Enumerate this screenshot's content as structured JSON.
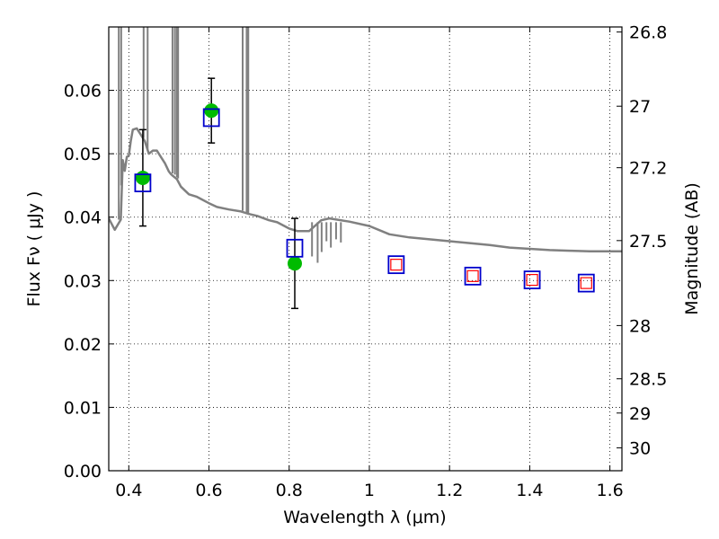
{
  "chart_data": {
    "type": "scatter",
    "xlabel": "Wavelength  λ (μm)",
    "ylabel": "Flux  Fν  ( μJy )",
    "ylabel2": "Magnitude (AB)",
    "xlim": [
      0.35,
      1.63
    ],
    "ylim": [
      0.0,
      0.07
    ],
    "grid": true,
    "x_ticks": [
      0.4,
      0.6,
      0.8,
      1.0,
      1.2,
      1.4,
      1.6
    ],
    "x_tick_labels": [
      "0.4",
      "0.6",
      "0.8",
      "1",
      "1.2",
      "1.4",
      "1.6"
    ],
    "y_ticks": [
      0.0,
      0.01,
      0.02,
      0.03,
      0.04,
      0.05,
      0.06
    ],
    "y_tick_labels": [
      "0.00",
      "0.01",
      "0.02",
      "0.03",
      "0.04",
      "0.05",
      "0.06"
    ],
    "mag_ticks": [
      {
        "label": "26.8",
        "flux": 0.0692
      },
      {
        "label": "27",
        "flux": 0.0575
      },
      {
        "label": "27.2",
        "flux": 0.0478
      },
      {
        "label": "27.5",
        "flux": 0.0363
      },
      {
        "label": "28",
        "flux": 0.0229
      },
      {
        "label": "28.5",
        "flux": 0.0145
      },
      {
        "label": "29",
        "flux": 0.0091
      },
      {
        "label": "30",
        "flux": 0.0036
      }
    ],
    "series": [
      {
        "marker": "circle",
        "color": "#00bb00",
        "x": [
          0.435,
          0.606,
          0.814
        ],
        "y": [
          0.0462,
          0.0568,
          0.0327
        ],
        "yerr": [
          0.0076,
          0.0051,
          0.0071
        ]
      },
      {
        "marker": "open-square",
        "color": "#0000cc",
        "x": [
          0.435,
          0.606,
          0.814,
          1.067,
          1.258,
          1.406,
          1.541
        ],
        "y": [
          0.0454,
          0.0557,
          0.0351,
          0.0325,
          0.0307,
          0.0301,
          0.0296
        ]
      },
      {
        "marker": "open-square",
        "color": "#ff0000",
        "x": [
          1.067,
          1.258,
          1.406,
          1.541
        ],
        "y": [
          0.0325,
          0.0307,
          0.0301,
          0.0296
        ]
      },
      {
        "type": "line",
        "color": "#808080",
        "x": [
          0.35,
          0.365,
          0.38,
          0.385,
          0.39,
          0.395,
          0.4,
          0.405,
          0.41,
          0.42,
          0.43,
          0.44,
          0.45,
          0.46,
          0.47,
          0.48,
          0.49,
          0.5,
          0.505,
          0.51,
          0.52,
          0.53,
          0.55,
          0.57,
          0.6,
          0.62,
          0.65,
          0.68,
          0.7,
          0.72,
          0.75,
          0.77,
          0.8,
          0.82,
          0.85,
          0.88,
          0.9,
          0.95,
          1.0,
          1.05,
          1.1,
          1.15,
          1.2,
          1.25,
          1.3,
          1.35,
          1.4,
          1.45,
          1.5,
          1.55,
          1.6,
          1.63
        ],
        "y": [
          0.0398,
          0.038,
          0.0396,
          0.049,
          0.0473,
          0.0495,
          0.0497,
          0.052,
          0.0538,
          0.054,
          0.053,
          0.052,
          0.05,
          0.0505,
          0.0505,
          0.0495,
          0.0485,
          0.0472,
          0.0468,
          0.0465,
          0.046,
          0.0448,
          0.0436,
          0.0432,
          0.0422,
          0.0416,
          0.0412,
          0.0409,
          0.0405,
          0.0402,
          0.0395,
          0.0392,
          0.0382,
          0.0378,
          0.0378,
          0.0395,
          0.0398,
          0.0393,
          0.0386,
          0.0373,
          0.0368,
          0.0365,
          0.0362,
          0.0359,
          0.0356,
          0.0352,
          0.035,
          0.0348,
          0.0347,
          0.0346,
          0.0346,
          0.0346
        ]
      }
    ]
  }
}
